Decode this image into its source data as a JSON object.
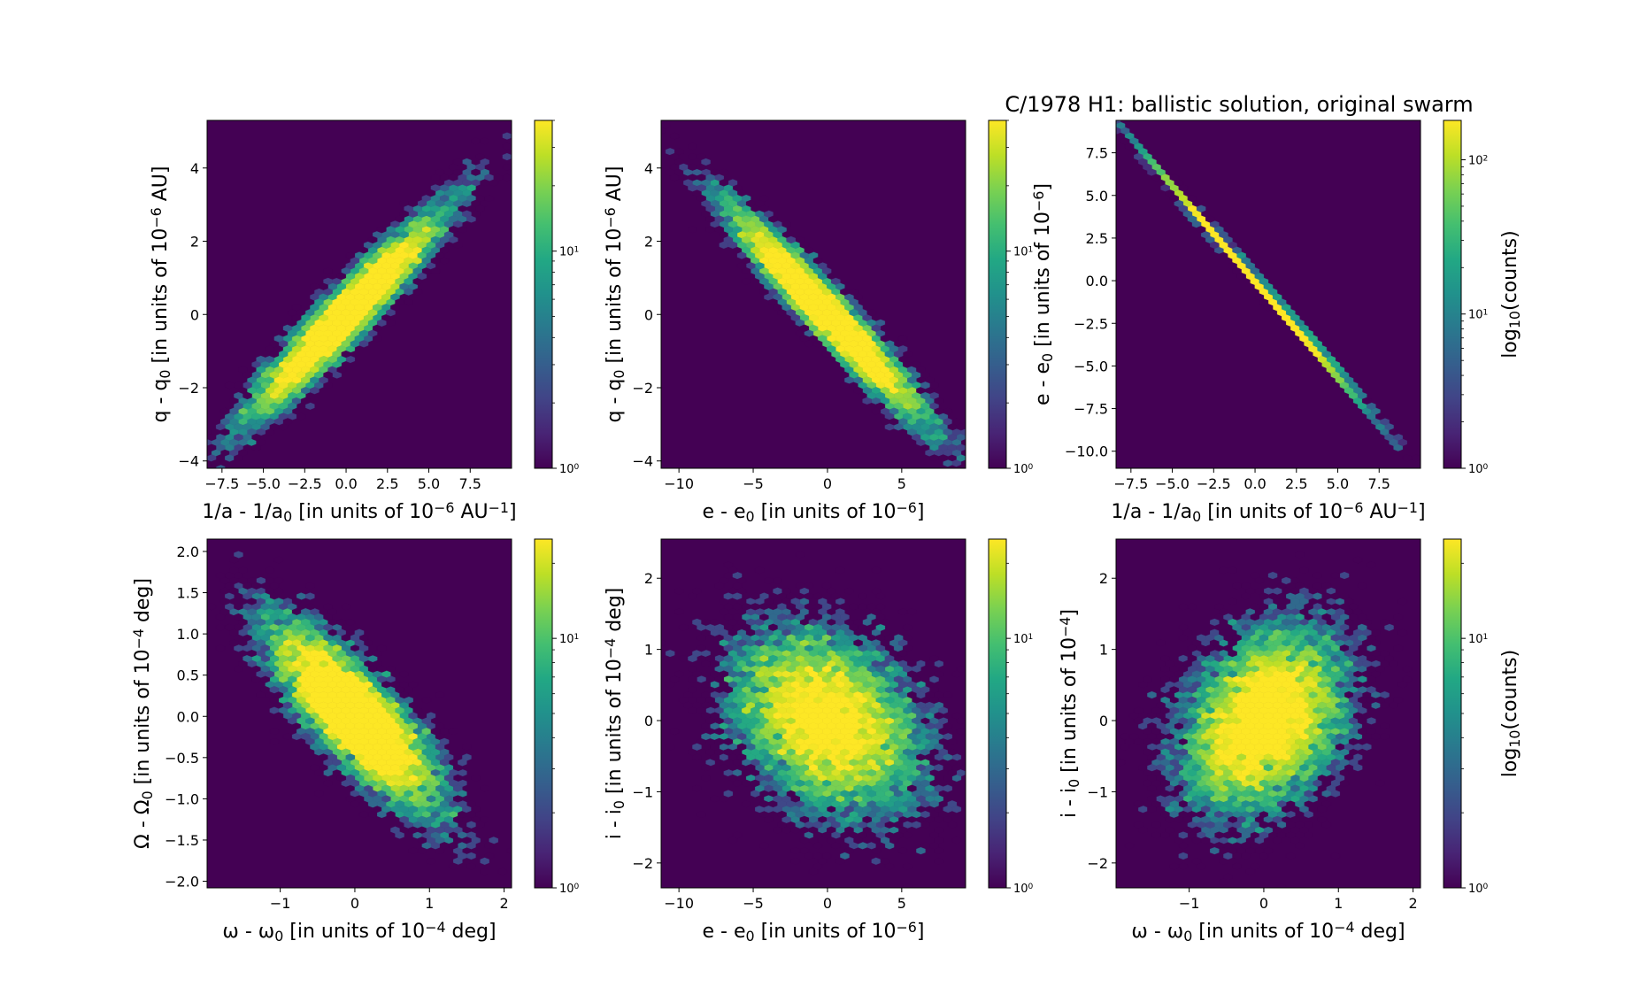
{
  "figure": {
    "title": "C/1978 H1:  ballistic solution, original swarm"
  },
  "colors": {
    "background_bin": "#440154",
    "colormap": [
      "#440154",
      "#482475",
      "#414487",
      "#355f8d",
      "#2a788e",
      "#21918c",
      "#22a884",
      "#44bf70",
      "#7ad151",
      "#bddf26",
      "#fde725"
    ]
  },
  "chart_data": [
    {
      "type": "heatmap",
      "kind": "hexbin",
      "xlabel_parts": [
        [
          "1/a - 1/a"
        ],
        [
          "0",
          "sub"
        ],
        [
          " [in units of 10"
        ],
        [
          "−6",
          "sup"
        ],
        [
          " AU"
        ],
        [
          "−1",
          "sup"
        ],
        [
          "]"
        ]
      ],
      "ylabel_parts": [
        [
          "q - q"
        ],
        [
          "0",
          "sub"
        ],
        [
          " [in units of 10"
        ],
        [
          "−6",
          "sup"
        ],
        [
          " AU]"
        ]
      ],
      "xlim": [
        -8.4,
        10.0
      ],
      "ylim": [
        -4.2,
        5.3
      ],
      "xticks": [
        -7.5,
        -5.0,
        -2.5,
        0.0,
        2.5,
        5.0,
        7.5
      ],
      "xticklabels": [
        "−7.5",
        "−5.0",
        "−2.5",
        "0.0",
        "2.5",
        "5.0",
        "7.5"
      ],
      "yticks": [
        -4,
        -2,
        0,
        2,
        4
      ],
      "yticklabels": [
        "−4",
        "−2",
        "0",
        "2",
        "4"
      ],
      "colorbar": {
        "scale": "log",
        "min": 1,
        "max": 40,
        "ticks": [
          1,
          10
        ],
        "label": ""
      },
      "distribution": {
        "center": [
          0,
          0
        ],
        "sx": 2.9,
        "sy": 1.4,
        "corr": 0.95,
        "n": 10000
      }
    },
    {
      "type": "heatmap",
      "kind": "hexbin",
      "xlabel_parts": [
        [
          "e - e"
        ],
        [
          "0",
          "sub"
        ],
        [
          " [in units of 10"
        ],
        [
          "−6",
          "sup"
        ],
        [
          "]"
        ]
      ],
      "ylabel_parts": [
        [
          "q - q"
        ],
        [
          "0",
          "sub"
        ],
        [
          " [in units of 10"
        ],
        [
          "−6",
          "sup"
        ],
        [
          " AU]"
        ]
      ],
      "xlim": [
        -11.2,
        9.3
      ],
      "ylim": [
        -4.2,
        5.3
      ],
      "xticks": [
        -10,
        -5,
        0,
        5
      ],
      "xticklabels": [
        "−10",
        "−5",
        "0",
        "5"
      ],
      "yticks": [
        -4,
        -2,
        0,
        2,
        4
      ],
      "yticklabels": [
        "−4",
        "−2",
        "0",
        "2",
        "4"
      ],
      "colorbar": {
        "scale": "log",
        "min": 1,
        "max": 40,
        "ticks": [
          1,
          10
        ],
        "label": ""
      },
      "distribution": {
        "center": [
          0,
          0
        ],
        "sx": 3.2,
        "sy": 1.4,
        "corr": -0.96,
        "n": 10000
      }
    },
    {
      "type": "heatmap",
      "kind": "hexbin",
      "xlabel_parts": [
        [
          "1/a - 1/a"
        ],
        [
          "0",
          "sub"
        ],
        [
          " [in units of 10"
        ],
        [
          "−6",
          "sup"
        ],
        [
          " AU"
        ],
        [
          "−1",
          "sup"
        ],
        [
          "]"
        ]
      ],
      "ylabel_parts": [
        [
          "e - e"
        ],
        [
          "0",
          "sub"
        ],
        [
          " [in units of 10"
        ],
        [
          "−6",
          "sup"
        ],
        [
          "]"
        ]
      ],
      "xlim": [
        -8.4,
        10.0
      ],
      "ylim": [
        -11.0,
        9.4
      ],
      "xticks": [
        -7.5,
        -5.0,
        -2.5,
        0.0,
        2.5,
        5.0,
        7.5
      ],
      "xticklabels": [
        "−7.5",
        "−5.0",
        "−2.5",
        "0.0",
        "2.5",
        "5.0",
        "7.5"
      ],
      "yticks": [
        -10.0,
        -7.5,
        -5.0,
        -2.5,
        0.0,
        2.5,
        5.0,
        7.5
      ],
      "yticklabels": [
        "−10.0",
        "−7.5",
        "−5.0",
        "−2.5",
        "0.0",
        "2.5",
        "5.0",
        "7.5"
      ],
      "colorbar": {
        "scale": "log",
        "min": 1,
        "max": 180,
        "ticks": [
          1,
          10,
          100
        ],
        "label_parts": [
          [
            "log"
          ],
          [
            "10",
            "sub"
          ],
          [
            "(counts)"
          ]
        ]
      },
      "distribution": {
        "center": [
          0,
          0
        ],
        "sx": 2.9,
        "sy": 3.2,
        "corr": -0.9995,
        "n": 10000
      }
    },
    {
      "type": "heatmap",
      "kind": "hexbin",
      "xlabel_parts": [
        [
          "ω - ω"
        ],
        [
          "0",
          "sub"
        ],
        [
          " [in units of 10"
        ],
        [
          "−4",
          "sup"
        ],
        [
          " deg]"
        ]
      ],
      "ylabel_parts": [
        [
          "Ω - Ω"
        ],
        [
          "0",
          "sub"
        ],
        [
          " [in units of 10"
        ],
        [
          "−4",
          "sup"
        ],
        [
          " deg]"
        ]
      ],
      "xlim": [
        -1.98,
        2.1
      ],
      "ylim": [
        -2.08,
        2.15
      ],
      "xticks": [
        -1,
        0,
        1,
        2
      ],
      "xticklabels": [
        "−1",
        "0",
        "1",
        "2"
      ],
      "yticks": [
        -2.0,
        -1.5,
        -1.0,
        -0.5,
        0.0,
        0.5,
        1.0,
        1.5,
        2.0
      ],
      "yticklabels": [
        "−2.0",
        "−1.5",
        "−1.0",
        "−0.5",
        "0.0",
        "0.5",
        "1.0",
        "1.5",
        "2.0"
      ],
      "colorbar": {
        "scale": "log",
        "min": 1,
        "max": 25,
        "ticks": [
          1,
          10
        ],
        "label": ""
      },
      "distribution": {
        "center": [
          0,
          0
        ],
        "sx": 0.55,
        "sy": 0.55,
        "corr": -0.8,
        "n": 10000
      }
    },
    {
      "type": "heatmap",
      "kind": "hexbin",
      "xlabel_parts": [
        [
          "e - e"
        ],
        [
          "0",
          "sub"
        ],
        [
          " [in units of 10"
        ],
        [
          "−6",
          "sup"
        ],
        [
          "]"
        ]
      ],
      "ylabel_parts": [
        [
          "i - i"
        ],
        [
          "0",
          "sub"
        ],
        [
          " [in units of 10"
        ],
        [
          "−4",
          "sup"
        ],
        [
          " deg]"
        ]
      ],
      "xlim": [
        -11.2,
        9.3
      ],
      "ylim": [
        -2.35,
        2.55
      ],
      "xticks": [
        -10,
        -5,
        0,
        5
      ],
      "xticklabels": [
        "−10",
        "−5",
        "0",
        "5"
      ],
      "yticks": [
        -2,
        -1,
        0,
        1,
        2
      ],
      "yticklabels": [
        "−2",
        "−1",
        "0",
        "1",
        "2"
      ],
      "colorbar": {
        "scale": "log",
        "min": 1,
        "max": 25,
        "ticks": [
          1,
          10
        ],
        "label": ""
      },
      "distribution": {
        "center": [
          0,
          0
        ],
        "sx": 3.2,
        "sy": 0.65,
        "corr": -0.3,
        "n": 10000
      }
    },
    {
      "type": "heatmap",
      "kind": "hexbin",
      "xlabel_parts": [
        [
          "ω - ω"
        ],
        [
          "0",
          "sub"
        ],
        [
          " [in units of 10"
        ],
        [
          "−4",
          "sup"
        ],
        [
          " deg]"
        ]
      ],
      "ylabel_parts": [
        [
          "i - i"
        ],
        [
          "0",
          "sub"
        ],
        [
          " [in units of 10"
        ],
        [
          "−4",
          "sup"
        ],
        [
          "]"
        ]
      ],
      "xlim": [
        -1.98,
        2.1
      ],
      "ylim": [
        -2.35,
        2.55
      ],
      "xticks": [
        -1,
        0,
        1,
        2
      ],
      "xticklabels": [
        "−1",
        "0",
        "1",
        "2"
      ],
      "yticks": [
        -2,
        -1,
        0,
        1,
        2
      ],
      "yticklabels": [
        "−2",
        "−1",
        "0",
        "1",
        "2"
      ],
      "colorbar": {
        "scale": "log",
        "min": 1,
        "max": 25,
        "ticks": [
          1,
          10
        ],
        "label_parts": [
          [
            "log"
          ],
          [
            "10",
            "sub"
          ],
          [
            "(counts)"
          ]
        ]
      },
      "distribution": {
        "center": [
          0,
          0
        ],
        "sx": 0.55,
        "sy": 0.65,
        "corr": 0.3,
        "n": 10000
      }
    }
  ]
}
